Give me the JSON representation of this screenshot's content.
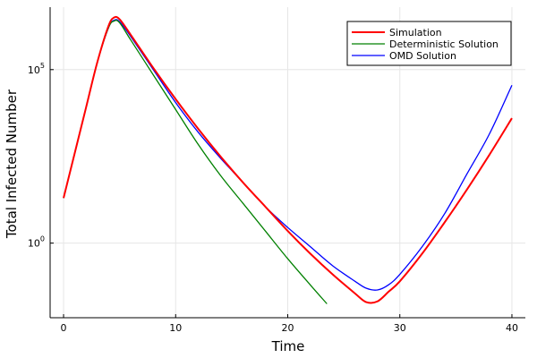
{
  "chart_data": {
    "type": "line",
    "title": "",
    "xlabel": "Time",
    "ylabel": "Total Infected Number",
    "y_scale": "log10",
    "xlim": [
      -1.2,
      41.2
    ],
    "ylim_log10": [
      -2.15,
      6.8
    ],
    "x_ticks": [
      {
        "value": 0,
        "label": "0"
      },
      {
        "value": 10,
        "label": "10"
      },
      {
        "value": 20,
        "label": "20"
      },
      {
        "value": 30,
        "label": "30"
      },
      {
        "value": 40,
        "label": "40"
      }
    ],
    "y_ticks": [
      {
        "value": 1,
        "log10": 0,
        "label_base": "10",
        "label_exp": "0"
      },
      {
        "value": 100000,
        "log10": 5,
        "label_base": "10",
        "label_exp": "5"
      }
    ],
    "grid": true,
    "legend_position": "top-right",
    "series": [
      {
        "name": "Simulation",
        "color": "#ff0000",
        "width": 2,
        "points_log10": [
          [
            0,
            1.3
          ],
          [
            1,
            2.6
          ],
          [
            2,
            3.9
          ],
          [
            3,
            5.2
          ],
          [
            4,
            6.25
          ],
          [
            4.5,
            6.5
          ],
          [
            5,
            6.45
          ],
          [
            6,
            6.0
          ],
          [
            8,
            5.05
          ],
          [
            10,
            4.15
          ],
          [
            12,
            3.3
          ],
          [
            14,
            2.5
          ],
          [
            16,
            1.75
          ],
          [
            18,
            1.05
          ],
          [
            20,
            0.35
          ],
          [
            22,
            -0.3
          ],
          [
            24,
            -0.9
          ],
          [
            26,
            -1.45
          ],
          [
            27,
            -1.7
          ],
          [
            28,
            -1.68
          ],
          [
            29,
            -1.4
          ],
          [
            30,
            -1.1
          ],
          [
            32,
            -0.3
          ],
          [
            34,
            0.6
          ],
          [
            36,
            1.55
          ],
          [
            38,
            2.55
          ],
          [
            40,
            3.6
          ]
        ]
      },
      {
        "name": "Deterministic Solution",
        "color": "#008000",
        "width": 1.3,
        "points_log10": [
          [
            0,
            1.3
          ],
          [
            1,
            2.6
          ],
          [
            2,
            3.9
          ],
          [
            3,
            5.2
          ],
          [
            4,
            6.2
          ],
          [
            4.5,
            6.4
          ],
          [
            5,
            6.35
          ],
          [
            6,
            5.85
          ],
          [
            8,
            4.85
          ],
          [
            10,
            3.85
          ],
          [
            12,
            2.85
          ],
          [
            14,
            1.95
          ],
          [
            16,
            1.15
          ],
          [
            18,
            0.35
          ],
          [
            20,
            -0.45
          ],
          [
            22,
            -1.2
          ],
          [
            23.5,
            -1.75
          ]
        ]
      },
      {
        "name": "OMD Solution",
        "color": "#0000ff",
        "width": 1.3,
        "points_log10": [
          [
            0,
            1.3
          ],
          [
            1,
            2.6
          ],
          [
            2,
            3.9
          ],
          [
            3,
            5.2
          ],
          [
            4,
            6.2
          ],
          [
            4.5,
            6.42
          ],
          [
            5,
            6.38
          ],
          [
            6,
            5.95
          ],
          [
            8,
            5.0
          ],
          [
            10,
            4.05
          ],
          [
            12,
            3.2
          ],
          [
            14,
            2.45
          ],
          [
            16,
            1.75
          ],
          [
            18,
            1.05
          ],
          [
            20,
            0.45
          ],
          [
            22,
            -0.1
          ],
          [
            24,
            -0.65
          ],
          [
            26,
            -1.1
          ],
          [
            27,
            -1.3
          ],
          [
            28,
            -1.35
          ],
          [
            29,
            -1.2
          ],
          [
            30,
            -0.9
          ],
          [
            32,
            -0.1
          ],
          [
            34,
            0.85
          ],
          [
            36,
            2.0
          ],
          [
            38,
            3.15
          ],
          [
            40,
            4.55
          ]
        ]
      }
    ]
  }
}
